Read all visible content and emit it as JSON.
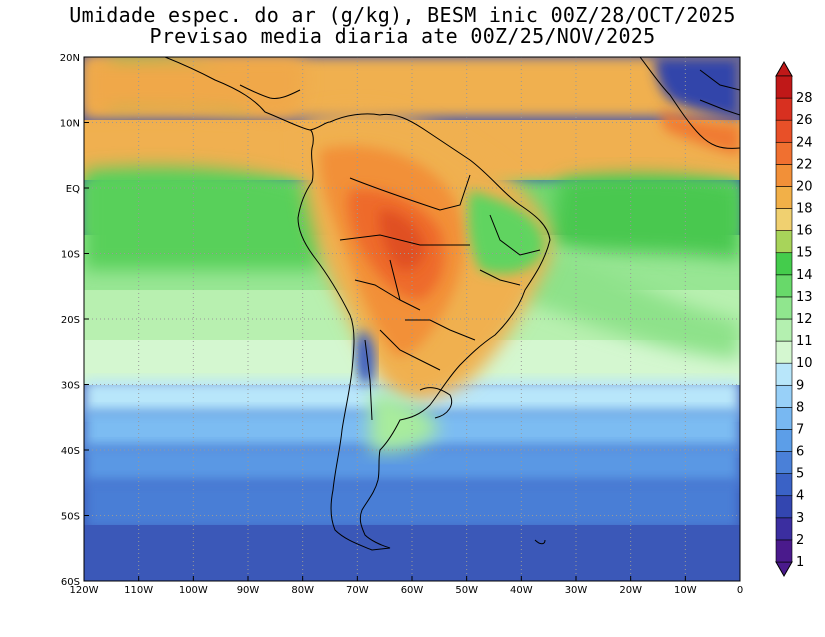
{
  "title_line1": "Umidade espec. do ar (g/kg), BESM inic 00Z/28/OCT/2025",
  "title_line2": "Previsao media diaria ate 00Z/25/NOV/2025",
  "map": {
    "lon_range": [
      -120,
      0
    ],
    "lat_range": [
      -60,
      20
    ],
    "lon_ticks": [
      {
        "value": -120,
        "label": "120W"
      },
      {
        "value": -110,
        "label": "110W"
      },
      {
        "value": -100,
        "label": "100W"
      },
      {
        "value": -90,
        "label": "90W"
      },
      {
        "value": -80,
        "label": "80W"
      },
      {
        "value": -70,
        "label": "70W"
      },
      {
        "value": -60,
        "label": "60W"
      },
      {
        "value": -50,
        "label": "50W"
      },
      {
        "value": -40,
        "label": "40W"
      },
      {
        "value": -30,
        "label": "30W"
      },
      {
        "value": -20,
        "label": "20W"
      },
      {
        "value": -10,
        "label": "10W"
      },
      {
        "value": 0,
        "label": "0"
      }
    ],
    "lat_ticks": [
      {
        "value": 20,
        "label": "20N"
      },
      {
        "value": 10,
        "label": "10N"
      },
      {
        "value": 0,
        "label": "EQ"
      },
      {
        "value": -10,
        "label": "10S"
      },
      {
        "value": -20,
        "label": "20S"
      },
      {
        "value": -30,
        "label": "30S"
      },
      {
        "value": -40,
        "label": "40S"
      },
      {
        "value": -50,
        "label": "50S"
      },
      {
        "value": -60,
        "label": "60S"
      }
    ],
    "gridlines": "dotted"
  },
  "colorbar": {
    "labels": [
      "1",
      "2",
      "3",
      "4",
      "5",
      "6",
      "7",
      "8",
      "9",
      "10",
      "11",
      "12",
      "13",
      "14",
      "15",
      "16",
      "18",
      "20",
      "22",
      "24",
      "26",
      "28"
    ],
    "colors": [
      "#4a1a8c",
      "#3b2ea0",
      "#3346b0",
      "#3a62c6",
      "#4a80d8",
      "#5c9ee8",
      "#78b8f2",
      "#98d0f8",
      "#b8e6fa",
      "#d4f7d0",
      "#b4f0b0",
      "#90e68e",
      "#68d96a",
      "#44cc4c",
      "#a8d45a",
      "#f0d070",
      "#f2b048",
      "#f29038",
      "#f07030",
      "#e85028",
      "#d83020",
      "#c01818"
    ]
  },
  "chart_data": {
    "type": "heatmap",
    "title": "Umidade espec. do ar (g/kg), BESM inic 00Z/28/OCT/2025",
    "subtitle": "Previsao media diaria ate 00Z/25/NOV/2025",
    "x_range": [
      -120,
      0
    ],
    "y_range": [
      -60,
      20
    ],
    "color_levels": [
      1,
      2,
      3,
      4,
      5,
      6,
      7,
      8,
      9,
      10,
      11,
      12,
      13,
      14,
      15,
      16,
      18,
      20,
      22,
      24,
      26,
      28
    ]
  }
}
